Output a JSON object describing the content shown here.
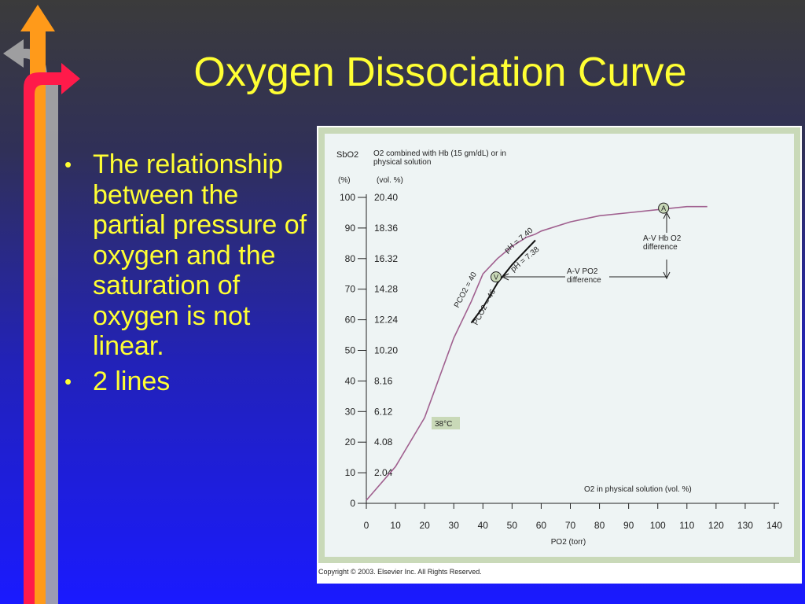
{
  "slide": {
    "title": "Oxygen Dissociation Curve",
    "bullets": [
      "The relationship between the partial pressure of oxygen and the saturation of oxygen is not linear.",
      "2 lines"
    ]
  },
  "chart_data": {
    "type": "line",
    "y_label": "SbO2",
    "y_unit": "(%)",
    "y2_label": "O2 combined with Hb (15 gm/dL) or in physical solution",
    "y2_unit": "(vol. %)",
    "x_label": "PO2 (torr)",
    "x": [
      0,
      10,
      20,
      30,
      36,
      40,
      45,
      50,
      55,
      58,
      60,
      70,
      80,
      90,
      100,
      110,
      117
    ],
    "series": [
      {
        "name": "pH = 7.40",
        "label2": "PCO2 = 40",
        "color": "#a0608f",
        "values": [
          1,
          12,
          28,
          54,
          66,
          75,
          80,
          84,
          87,
          88,
          89,
          92,
          94,
          95,
          96,
          97,
          97
        ]
      },
      {
        "name": "pH = 7.38",
        "label2": "PCO2 = 46",
        "color": "#111111",
        "values": [
          null,
          null,
          null,
          null,
          59,
          64,
          72,
          78,
          83,
          86,
          null,
          null,
          null,
          null,
          null,
          null,
          null
        ]
      }
    ],
    "points": [
      {
        "label": "A",
        "x": 102,
        "y": 96.5
      },
      {
        "label": "V",
        "x": 44.5,
        "y": 74
      }
    ],
    "xlim": [
      0,
      140
    ],
    "xticks": [
      0,
      10,
      20,
      30,
      40,
      50,
      60,
      70,
      80,
      90,
      100,
      110,
      120,
      130,
      140
    ],
    "ylim": [
      0,
      100
    ],
    "yticks": [
      0,
      10,
      20,
      30,
      40,
      50,
      60,
      70,
      80,
      90,
      100
    ],
    "y2lim": [
      0,
      20.4
    ],
    "y2ticks": [
      2.04,
      4.08,
      6.12,
      8.16,
      {
        "value": 10.2,
        "label": "10.20"
      },
      12.24,
      14.28,
      16.32,
      18.36,
      {
        "value": 20.4,
        "label": "20.40"
      }
    ],
    "annotations": {
      "hb_difference": "A-V Hb O2 difference",
      "po2_difference": "A-V PO2 difference",
      "temperature": "38°C",
      "physical_solution": "O2 in physical solution (vol. %)"
    },
    "copyright": "Copyright © 2003. Elsevier Inc. All Rights Reserved."
  }
}
